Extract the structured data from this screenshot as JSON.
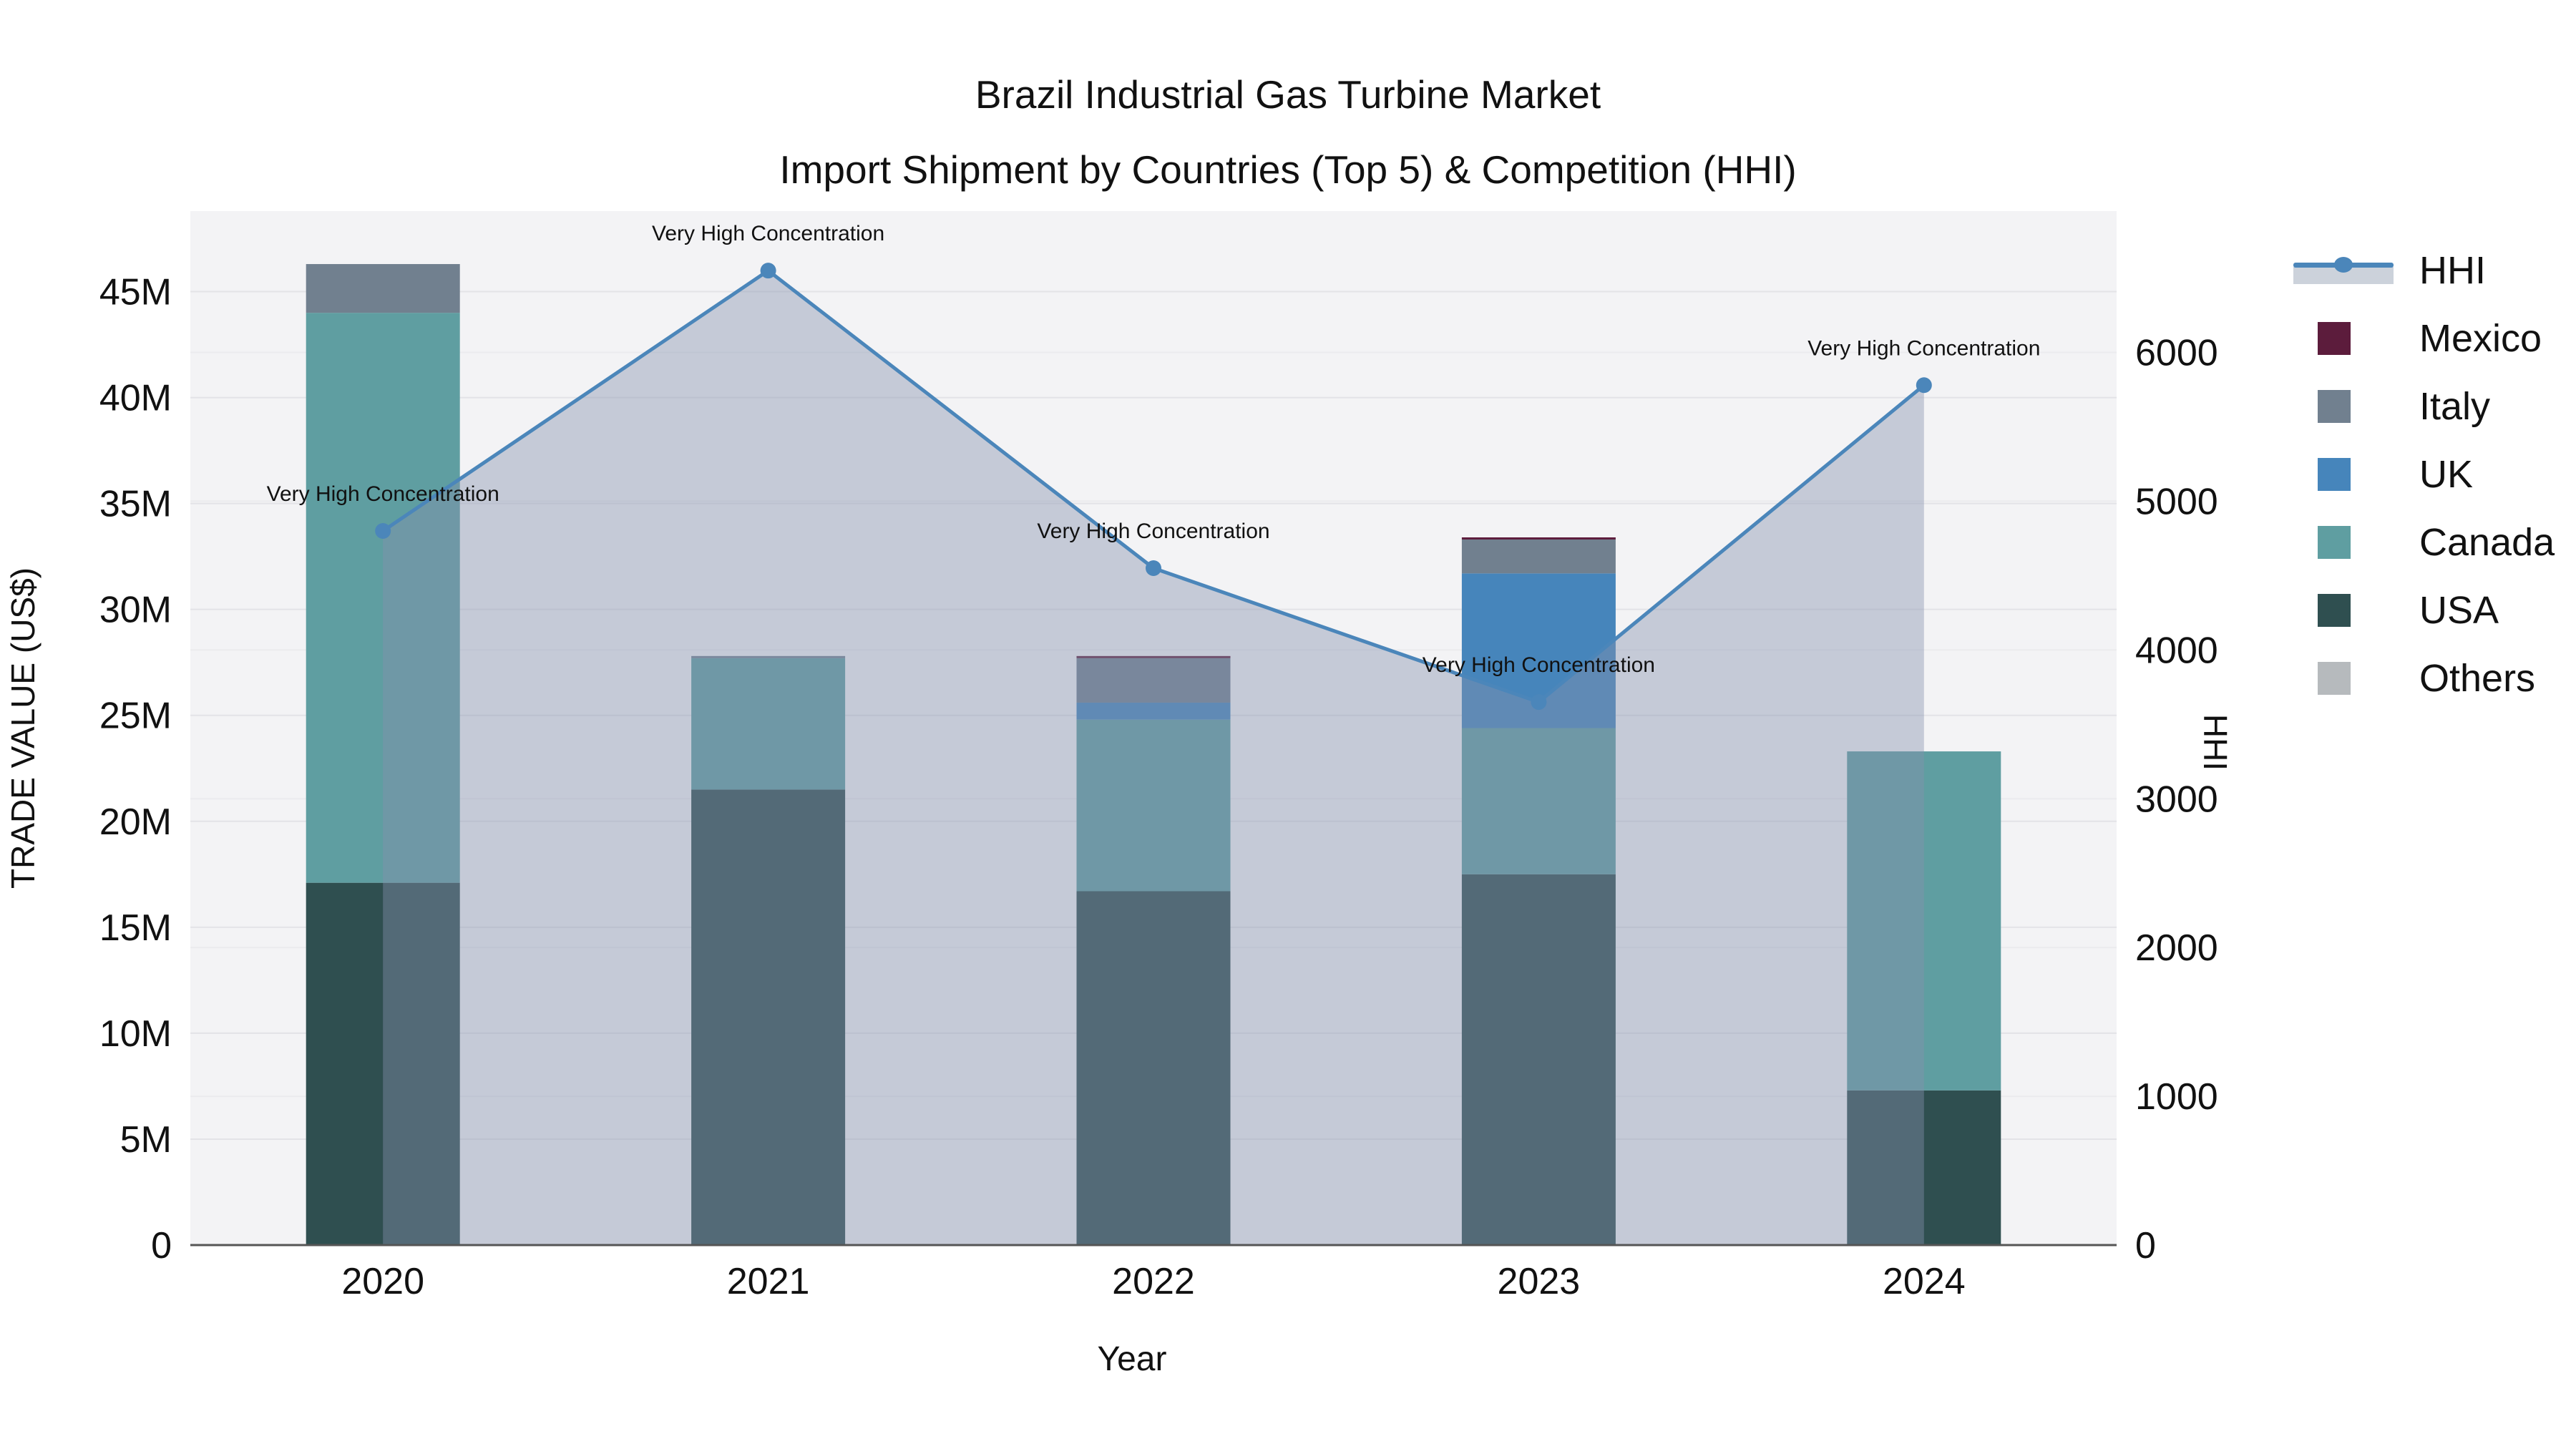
{
  "title": {
    "line1": "Brazil Industrial Gas Turbine Market",
    "line2": "Import Shipment by Countries (Top 5) & Competition (HHI)"
  },
  "axes": {
    "left": {
      "title": "TRADE VALUE (US$)",
      "tick_labels": [
        "0",
        "5M",
        "10M",
        "15M",
        "20M",
        "25M",
        "30M",
        "35M",
        "40M",
        "45M"
      ],
      "tick_values": [
        0,
        5,
        10,
        15,
        20,
        25,
        30,
        35,
        40,
        45
      ],
      "range": [
        0,
        48.8
      ]
    },
    "right": {
      "title": "HHI",
      "tick_labels": [
        "0",
        "1000",
        "2000",
        "3000",
        "4000",
        "5000",
        "6000"
      ],
      "tick_values": [
        0,
        1000,
        2000,
        3000,
        4000,
        5000,
        6000
      ],
      "range": [
        0,
        6950
      ]
    },
    "x": {
      "title": "Year",
      "tick_labels": [
        "2020",
        "2021",
        "2022",
        "2023",
        "2024"
      ]
    }
  },
  "chart_data": {
    "type": "combo-stacked-bar-line",
    "categories": [
      "2020",
      "2021",
      "2022",
      "2023",
      "2024"
    ],
    "series": [
      {
        "name": "USA",
        "color": "#2f4f50",
        "values": [
          17.1,
          21.5,
          16.7,
          17.5,
          7.3
        ]
      },
      {
        "name": "Canada",
        "color": "#5f9ea1",
        "values": [
          26.9,
          6.2,
          8.1,
          6.9,
          16.0
        ]
      },
      {
        "name": "UK",
        "color": "#4685bb",
        "values": [
          0,
          0,
          0.8,
          7.3,
          0
        ]
      },
      {
        "name": "Italy",
        "color": "#71808f",
        "values": [
          2.3,
          0.1,
          2.1,
          1.6,
          0
        ]
      },
      {
        "name": "Mexico",
        "color": "#5c1c3c",
        "values": [
          0,
          0,
          0.1,
          0.1,
          0
        ]
      },
      {
        "name": "Others",
        "color": "#b6babd",
        "values": [
          0,
          0,
          0,
          0,
          0
        ]
      }
    ],
    "hhi": {
      "name": "HHI",
      "line_color": "#4b86ba",
      "area_color": "rgba(134,146,173,0.42)",
      "values": [
        4800,
        6550,
        4550,
        3650,
        5780
      ]
    },
    "annotations": [
      {
        "category": "2020",
        "text": "Very High Concentration"
      },
      {
        "category": "2021",
        "text": "Very High Concentration"
      },
      {
        "category": "2022",
        "text": "Very High Concentration"
      },
      {
        "category": "2023",
        "text": "Very High Concentration"
      },
      {
        "category": "2024",
        "text": "Very High Concentration"
      }
    ],
    "title": "Brazil Industrial Gas Turbine Market — Import Shipment by Countries (Top 5) & Competition (HHI)",
    "xlabel": "Year",
    "ylabel_left": "TRADE VALUE (US$)",
    "ylabel_right": "HHI",
    "grid": true,
    "legend_position": "right"
  },
  "legend": {
    "items": [
      {
        "label": "HHI",
        "kind": "line",
        "color": "#4b86ba",
        "band_color": "#ccd2db"
      },
      {
        "label": "Mexico",
        "kind": "swatch",
        "color": "#5c1c3c"
      },
      {
        "label": "Italy",
        "kind": "swatch",
        "color": "#71808f"
      },
      {
        "label": "UK",
        "kind": "swatch",
        "color": "#4685bb"
      },
      {
        "label": "Canada",
        "kind": "swatch",
        "color": "#5f9ea1"
      },
      {
        "label": "USA",
        "kind": "swatch",
        "color": "#2f4f50"
      },
      {
        "label": "Others",
        "kind": "swatch",
        "color": "#b6babd"
      }
    ]
  },
  "colors": {
    "plot_bg": "#f3f3f5",
    "grid_major": "#e3e3e7",
    "grid_minor": "#ebebee",
    "axis_line": "#555555",
    "text": "#111111"
  }
}
